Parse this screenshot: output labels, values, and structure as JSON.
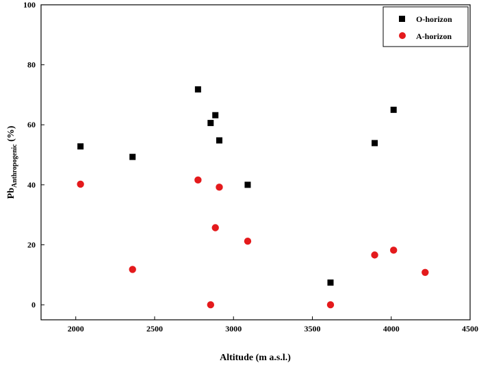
{
  "chart_data": {
    "type": "scatter",
    "xlabel": "Altitude (m a.s.l.)",
    "ylabel": {
      "main": "Pb",
      "subscript": "Anthropogenic",
      "suffix": " (%)"
    },
    "xlim": [
      1780,
      4500
    ],
    "ylim": [
      -5,
      100
    ],
    "xticks": [
      2000,
      2500,
      3000,
      3500,
      4000,
      4500
    ],
    "yticks": [
      0,
      20,
      40,
      60,
      80,
      100
    ],
    "grid": false,
    "legend_position": "top-right",
    "series": [
      {
        "name": "O-horizon",
        "marker": "square",
        "color": "#000000",
        "points": [
          {
            "x": 2030,
            "y": 52.8
          },
          {
            "x": 2360,
            "y": 49.3
          },
          {
            "x": 2775,
            "y": 71.8
          },
          {
            "x": 2855,
            "y": 60.6
          },
          {
            "x": 2885,
            "y": 63.2
          },
          {
            "x": 2910,
            "y": 54.8
          },
          {
            "x": 3090,
            "y": 40.0
          },
          {
            "x": 3615,
            "y": 7.4
          },
          {
            "x": 3895,
            "y": 53.9
          },
          {
            "x": 4015,
            "y": 65.0
          }
        ]
      },
      {
        "name": "A-horizon",
        "marker": "circle",
        "color": "#e41a1c",
        "points": [
          {
            "x": 2030,
            "y": 40.2
          },
          {
            "x": 2360,
            "y": 11.8
          },
          {
            "x": 2775,
            "y": 41.6
          },
          {
            "x": 2855,
            "y": 0.0
          },
          {
            "x": 2885,
            "y": 25.7
          },
          {
            "x": 2910,
            "y": 39.2
          },
          {
            "x": 3090,
            "y": 21.2
          },
          {
            "x": 3615,
            "y": 0.0
          },
          {
            "x": 3895,
            "y": 16.6
          },
          {
            "x": 4015,
            "y": 18.2
          },
          {
            "x": 4215,
            "y": 10.8
          }
        ]
      }
    ]
  }
}
